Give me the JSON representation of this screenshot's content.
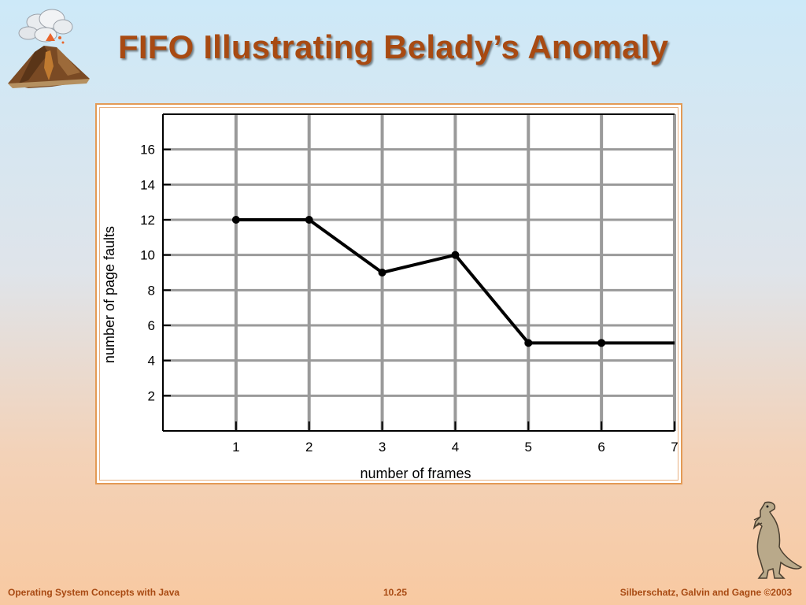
{
  "slide": {
    "title": "FIFO Illustrating Belady’s Anomaly"
  },
  "footer": {
    "course": "Operating System Concepts with Java",
    "page": "10.25",
    "authors": "Silberschatz, Galvin and Gagne ©2003"
  },
  "logos": {
    "top_left": "volcano-icon",
    "bottom_right": "dinosaur-icon"
  },
  "colors": {
    "title": "#a84a12",
    "frame_border": "#e39a55",
    "grid": "#999999",
    "line": "#000000"
  },
  "chart_data": {
    "type": "line",
    "title": "",
    "xlabel": "number of frames",
    "ylabel": "number of page faults",
    "xlim": [
      0,
      7
    ],
    "ylim": [
      0,
      18
    ],
    "xticks": [
      1,
      2,
      3,
      4,
      5,
      6,
      7
    ],
    "yticks": [
      2,
      4,
      6,
      8,
      10,
      12,
      14,
      16
    ],
    "grid": true,
    "legend": false,
    "series": [
      {
        "x": [
          1,
          2,
          3,
          4,
          5,
          6,
          7
        ],
        "y": [
          12,
          12,
          9,
          10,
          5,
          5,
          5
        ],
        "markers": [
          1,
          2,
          3,
          4,
          5,
          6
        ]
      }
    ]
  }
}
